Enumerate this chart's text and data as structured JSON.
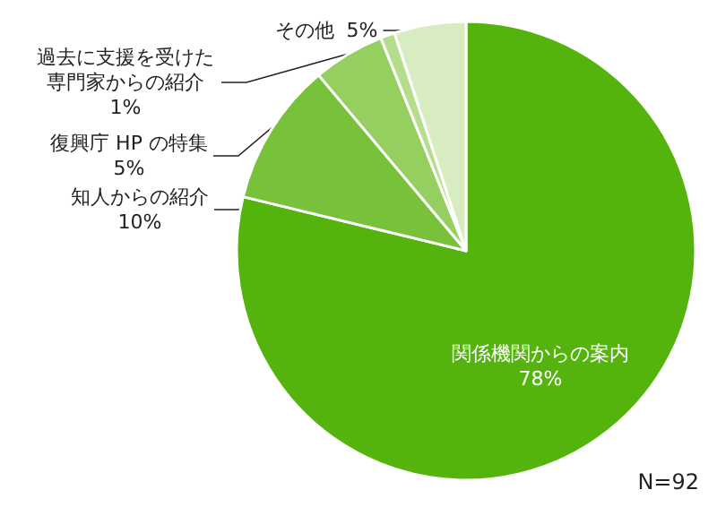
{
  "chart_data": {
    "type": "pie",
    "categories": [
      "関係機関からの案内",
      "知人からの紹介",
      "復興庁 HP の特集",
      "過去に支援を受けた専門家からの紹介",
      "その他"
    ],
    "values": [
      78,
      10,
      5,
      1,
      5
    ],
    "colors": [
      "#55b30e",
      "#77c23a",
      "#95cf5f",
      "#b4dd8c",
      "#d8ecc2"
    ],
    "value_labels": [
      "78%",
      "10%",
      "5%",
      "1%",
      "5%"
    ],
    "legend": false,
    "annotations": [
      "N=92"
    ]
  }
}
